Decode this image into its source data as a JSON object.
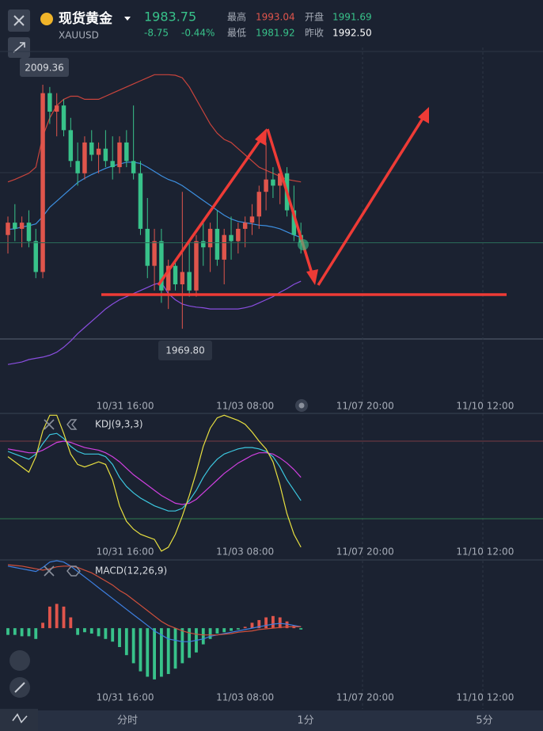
{
  "header": {
    "title": "现货黄金",
    "symbol": "XAUUSD",
    "price": "1983.75",
    "change": "-8.75",
    "change_pct": "-0.44%",
    "stats": [
      {
        "label": "最高",
        "value": "1993.04"
      },
      {
        "label": "开盘",
        "value": "1991.69"
      },
      {
        "label": "最低",
        "value": "1981.92"
      },
      {
        "label": "昨收",
        "value": "1992.50"
      }
    ]
  },
  "tabs": [
    "分时",
    "1分",
    "5分"
  ],
  "chart_data": [
    {
      "type": "candlestick",
      "up_color": "#e0554c",
      "down_color": "#38c28a",
      "annotations": [
        "2009.36",
        "1969.80"
      ],
      "x": [
        0,
        1,
        2,
        3,
        4,
        5,
        6,
        7,
        8,
        9,
        10,
        11,
        12,
        13,
        14,
        15,
        16,
        17,
        18,
        19,
        20,
        21,
        22,
        23,
        24,
        25,
        26,
        27,
        28,
        29,
        30,
        31,
        32,
        33,
        34,
        35,
        36,
        37,
        38,
        39,
        40,
        41,
        42
      ],
      "open": [
        1985,
        1987,
        1986,
        1987,
        1984,
        1979,
        2008,
        2005,
        2006,
        2002,
        1997,
        1995,
        2000,
        1998,
        1999,
        1997,
        1996,
        2000,
        1997,
        1995,
        1986,
        1980,
        1984,
        1976,
        1980,
        1977,
        1979,
        1976,
        1984,
        1983,
        1986,
        1981,
        1985,
        1984,
        1986,
        1987,
        1988,
        1992,
        1994,
        1993,
        1995,
        1989,
        1985
      ],
      "high": [
        1988,
        1990,
        1988,
        1989,
        1986,
        2009.36,
        2009,
        2008,
        2007,
        2004,
        2000,
        2001,
        2002,
        2000,
        2002,
        2001,
        2001,
        2002,
        2006,
        1997,
        1991,
        1986,
        1986,
        1981,
        1981,
        1992,
        1984,
        1985,
        1987,
        1987,
        1989,
        1986,
        1988,
        1987,
        1988,
        1990,
        1993,
        2000,
        1996,
        1996,
        1996,
        1993,
        1987
      ],
      "low": [
        1982,
        1984,
        1983,
        1983,
        1978,
        1978,
        2003,
        2001,
        2001,
        1996,
        1993,
        1994,
        1997,
        1995,
        1996,
        1994,
        1995,
        1996,
        1994,
        1985,
        1978,
        1976,
        1974,
        1973,
        1976,
        1969.8,
        1975,
        1975,
        1980,
        1979,
        1980,
        1977,
        1981,
        1982,
        1983,
        1985,
        1986,
        1989,
        1991,
        1990,
        1988,
        1984,
        1982
      ],
      "close": [
        1987,
        1986,
        1987,
        1984,
        1979,
        2008,
        2005,
        2006,
        2002,
        1997,
        1995,
        2000,
        1998,
        1999,
        1997,
        1996,
        2000,
        1997,
        1995,
        1986,
        1980,
        1984,
        1976,
        1980,
        1977,
        1979,
        1976,
        1984,
        1983,
        1986,
        1981,
        1985,
        1984,
        1986,
        1987,
        1988,
        1992,
        1994,
        1993,
        1995,
        1989,
        1985,
        1983.75
      ],
      "series": [
        {
          "color": "#c9443c",
          "values": [
            1993.6,
            1994,
            1994.5,
            1995,
            1996,
            2001,
            2004,
            2006,
            2007,
            2007.5,
            2007.5,
            2007,
            2007,
            2007,
            2007.5,
            2008,
            2008.5,
            2009,
            2009.5,
            2010,
            2010.5,
            2011,
            2011,
            2011,
            2010.9,
            2010.5,
            2009,
            2007,
            2005,
            2003,
            2001.5,
            2000.5,
            2000,
            1999,
            1998,
            1997,
            1996,
            1995.5,
            1995,
            1994.5,
            1994,
            1993.8,
            1993.6
          ]
        },
        {
          "color": "#3d8fe0",
          "values": [
            1985.9,
            1986,
            1986.3,
            1986.5,
            1986.8,
            1988,
            1989.5,
            1990.5,
            1991.5,
            1992.5,
            1993.5,
            1994.2,
            1994.8,
            1995.3,
            1995.8,
            1996.2,
            1996.5,
            1996.8,
            1996.8,
            1996.6,
            1996,
            1995.3,
            1994.6,
            1994,
            1993.6,
            1993,
            1992.2,
            1991.4,
            1990.6,
            1989.8,
            1989,
            1988.2,
            1987.6,
            1987.2,
            1987,
            1986.8,
            1986.6,
            1986.5,
            1986.3,
            1986,
            1985.5,
            1985,
            1984.6
          ]
        },
        {
          "color": "#8a4ee0",
          "values": [
            1964,
            1964.2,
            1964.4,
            1964.8,
            1965,
            1965.2,
            1965.5,
            1966,
            1966.8,
            1967.8,
            1969,
            1970,
            1971,
            1972,
            1973,
            1973.8,
            1974.5,
            1975,
            1975.5,
            1976,
            1976.5,
            1977,
            1977.3,
            1975.5,
            1974.5,
            1973.8,
            1973.5,
            1973.3,
            1973.2,
            1973,
            1973,
            1973,
            1973,
            1973,
            1973.2,
            1973.5,
            1974,
            1974.5,
            1975,
            1975.7,
            1976.3,
            1977,
            1977.5
          ]
        }
      ],
      "xlim": [
        0,
        76.7
      ],
      "ylim": [
        1958.25,
        2015.4
      ],
      "xticks": [
        {
          "value": 16.8,
          "label": "10/31 16:00"
        },
        {
          "value": 34,
          "label": "11/03 08:00"
        },
        {
          "value": 51.2,
          "label": "11/07 20:00"
        },
        {
          "value": 68.4,
          "label": "11/10 12:00"
        }
      ]
    },
    {
      "type": "line",
      "title": "KDJ(9,3,3)",
      "xlim": [
        0,
        76.7
      ],
      "ylim": [
        -10.6,
        101.4
      ],
      "x": [
        0,
        1,
        2,
        3,
        4,
        5,
        6,
        7,
        8,
        9,
        10,
        11,
        12,
        13,
        14,
        15,
        16,
        17,
        18,
        19,
        20,
        21,
        22,
        23,
        24,
        25,
        26,
        27,
        28,
        29,
        30,
        31,
        32,
        33,
        34,
        35,
        36,
        37,
        38,
        39,
        40,
        41,
        42
      ],
      "hlines": [
        {
          "value": 80,
          "color": "#7a3a44"
        },
        {
          "value": 20,
          "color": "#2f7a4e"
        }
      ],
      "series": [
        {
          "color": "#3cc8e0",
          "values": [
            72,
            70,
            68,
            66,
            70,
            78,
            85,
            86,
            82,
            76,
            72,
            70,
            70,
            70,
            68,
            62,
            52,
            45,
            40,
            36,
            33,
            30,
            28,
            26,
            26,
            28,
            34,
            42,
            52,
            60,
            66,
            70,
            72,
            74,
            75,
            75,
            74,
            72,
            68,
            60,
            50,
            42,
            34
          ]
        },
        {
          "color": "#d040e0",
          "values": [
            74,
            73,
            72,
            71,
            71,
            73,
            76,
            79,
            80,
            79,
            77,
            75,
            74,
            73,
            71,
            68,
            64,
            59,
            54,
            50,
            46,
            42,
            38,
            35,
            32,
            31,
            32,
            35,
            40,
            45,
            50,
            55,
            59,
            63,
            66,
            69,
            71,
            71,
            70,
            67,
            63,
            58,
            52
          ]
        },
        {
          "color": "#e8e040",
          "values": [
            68,
            64,
            60,
            56,
            68,
            88,
            100,
            100,
            86,
            70,
            62,
            60,
            62,
            64,
            62,
            50,
            30,
            18,
            12,
            8,
            6,
            4,
            -5,
            -2,
            8,
            22,
            38,
            56,
            76,
            90,
            98,
            100,
            98,
            96,
            93,
            87,
            80,
            74,
            64,
            46,
            24,
            8,
            -2
          ]
        }
      ],
      "xticks": [
        {
          "value": 16.8,
          "label": "10/31 16:00"
        },
        {
          "value": 34,
          "label": "11/03 08:00"
        },
        {
          "value": 51.2,
          "label": "11/07 20:00"
        },
        {
          "value": 68.4,
          "label": "11/10 12:00"
        }
      ]
    },
    {
      "type": "macd",
      "title": "MACD(12,26,9)",
      "xlim": [
        0,
        76.7
      ],
      "ylim": [
        -5.1,
        5
      ],
      "x": [
        0,
        1,
        2,
        3,
        4,
        5,
        6,
        7,
        8,
        9,
        10,
        11,
        12,
        13,
        14,
        15,
        16,
        17,
        18,
        19,
        20,
        21,
        22,
        23,
        24,
        25,
        26,
        27,
        28,
        29,
        30,
        31,
        32,
        33,
        34,
        35,
        36,
        37,
        38,
        39,
        40,
        41,
        42
      ],
      "up_color": "#e0554c",
      "down_color": "#38c28a",
      "values": [
        -0.5,
        -0.5,
        -0.6,
        -0.6,
        -0.8,
        0.4,
        1.6,
        1.8,
        1.6,
        0.8,
        -0.5,
        -0.3,
        -0.4,
        -0.6,
        -0.8,
        -1.0,
        -1.4,
        -2.0,
        -2.6,
        -3.2,
        -3.6,
        -3.8,
        -3.6,
        -3.4,
        -3.0,
        -2.6,
        -2.2,
        -1.8,
        -1.2,
        -0.8,
        -0.4,
        -0.3,
        -0.2,
        -0.1,
        0.1,
        0.4,
        0.6,
        0.8,
        0.9,
        0.8,
        0.5,
        0.2,
        -0.1
      ],
      "series": [
        {
          "color": "#3d7fe0",
          "values": [
            4.6,
            4.5,
            4.4,
            4.3,
            4.2,
            4.5,
            4.9,
            5.0,
            4.9,
            4.6,
            4.2,
            3.8,
            3.4,
            3.0,
            2.6,
            2.2,
            1.8,
            1.4,
            1.0,
            0.6,
            0.2,
            -0.2,
            -0.5,
            -0.8,
            -0.9,
            -1.0,
            -1.0,
            -0.9,
            -0.8,
            -0.6,
            -0.5,
            -0.4,
            -0.3,
            -0.2,
            -0.1,
            0.0,
            0.1,
            0.2,
            0.3,
            0.35,
            0.3,
            0.2,
            0.1
          ]
        },
        {
          "color": "#d0503c",
          "values": [
            4.7,
            4.65,
            4.6,
            4.5,
            4.4,
            4.3,
            4.4,
            4.55,
            4.6,
            4.6,
            4.5,
            4.3,
            4.1,
            3.8,
            3.5,
            3.2,
            2.8,
            2.5,
            2.1,
            1.7,
            1.3,
            0.9,
            0.5,
            0.2,
            0,
            -0.2,
            -0.35,
            -0.45,
            -0.5,
            -0.5,
            -0.5,
            -0.45,
            -0.4,
            -0.3,
            -0.25,
            -0.2,
            -0.1,
            -0.05,
            0,
            0.05,
            0.1,
            0.1,
            0.1
          ]
        }
      ],
      "xticks": [
        {
          "value": 16.8,
          "label": "10/31 16:00"
        },
        {
          "value": 34,
          "label": "11/03 08:00"
        },
        {
          "value": 51.2,
          "label": "11/07 20:00"
        },
        {
          "value": 68.4,
          "label": "11/10 12:00"
        }
      ]
    }
  ]
}
